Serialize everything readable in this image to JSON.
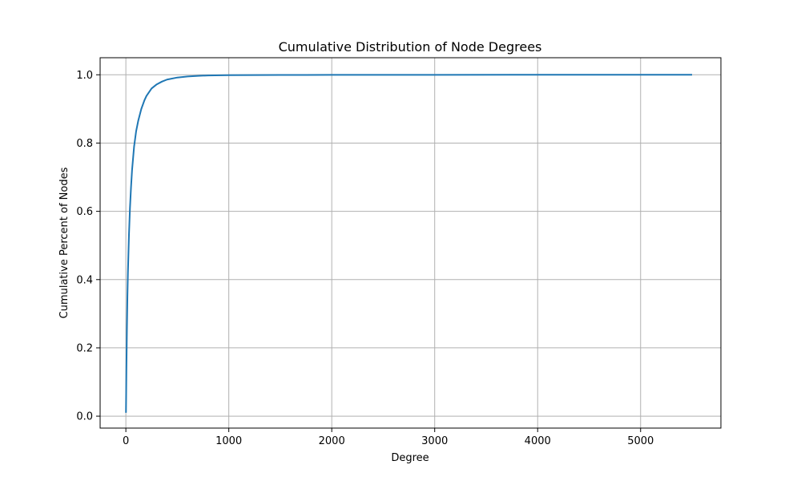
{
  "chart_data": {
    "type": "line",
    "title": "Cumulative Distribution of Node Degrees",
    "xlabel": "Degree",
    "ylabel": "Cumulative Percent of Nodes",
    "xlim": [
      -250,
      5780
    ],
    "ylim": [
      -0.035,
      1.05
    ],
    "xticks": [
      0,
      1000,
      2000,
      3000,
      4000,
      5000
    ],
    "yticks": [
      0.0,
      0.2,
      0.4,
      0.6,
      0.8,
      1.0
    ],
    "xtick_labels": [
      "0",
      "1000",
      "2000",
      "3000",
      "4000",
      "5000"
    ],
    "ytick_labels": [
      "0.0",
      "0.2",
      "0.4",
      "0.6",
      "0.8",
      "1.0"
    ],
    "grid": true,
    "legend": "none",
    "series": [
      {
        "color": "#1f77b4",
        "x": [
          1,
          5,
          10,
          15,
          20,
          30,
          40,
          50,
          60,
          80,
          100,
          120,
          150,
          180,
          200,
          250,
          300,
          350,
          400,
          500,
          600,
          700,
          800,
          1000,
          1500,
          2000,
          3000,
          4000,
          5000,
          5500
        ],
        "y": [
          0.01,
          0.13,
          0.25,
          0.35,
          0.42,
          0.53,
          0.61,
          0.67,
          0.72,
          0.79,
          0.835,
          0.865,
          0.9,
          0.925,
          0.938,
          0.96,
          0.972,
          0.98,
          0.986,
          0.992,
          0.995,
          0.997,
          0.998,
          0.999,
          0.9995,
          0.9998,
          0.9999,
          1.0,
          1.0,
          1.0
        ]
      }
    ]
  }
}
